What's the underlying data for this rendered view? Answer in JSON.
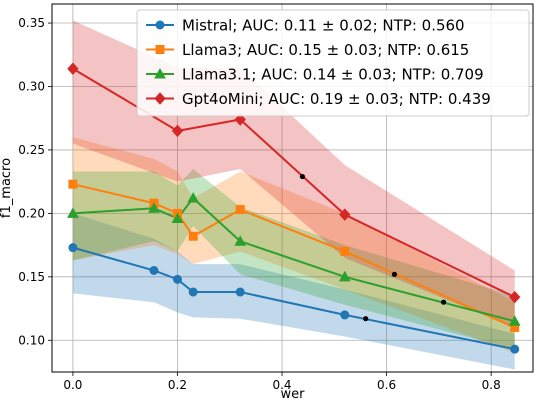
{
  "chart_data": {
    "type": "line",
    "title": "",
    "xlabel": "wer",
    "ylabel": "f1_macro",
    "xlim": [
      -0.04,
      0.88
    ],
    "ylim": [
      0.075,
      0.365
    ],
    "xticks": [
      "0.0",
      "0.2",
      "0.4",
      "0.6",
      "0.8"
    ],
    "yticks": [
      "0.10",
      "0.15",
      "0.20",
      "0.25",
      "0.30",
      "0.35"
    ],
    "grid": true,
    "legend_position": "top-right",
    "series": [
      {
        "name": "Mistral; AUC: 0.11 ± 0.02; NTP: 0.560",
        "color": "#1f77b4",
        "marker": "circle",
        "x": [
          0.0,
          0.155,
          0.2,
          0.23,
          0.32,
          0.52,
          0.845
        ],
        "y": [
          0.173,
          0.155,
          0.148,
          0.138,
          0.138,
          0.12,
          0.093
        ],
        "lower": [
          0.137,
          0.13,
          0.122,
          0.118,
          0.117,
          0.103,
          0.077
        ],
        "upper": [
          0.2,
          0.18,
          0.17,
          0.16,
          0.16,
          0.14,
          0.105
        ],
        "ntp": [
          0.56,
          0.117
        ]
      },
      {
        "name": "Llama3; AUC: 0.15 ± 0.03; NTP: 0.615",
        "color": "#ff7f0e",
        "marker": "square",
        "x": [
          0.0,
          0.155,
          0.2,
          0.23,
          0.32,
          0.52,
          0.845
        ],
        "y": [
          0.223,
          0.208,
          0.2,
          0.182,
          0.203,
          0.17,
          0.11
        ],
        "lower": [
          0.163,
          0.175,
          0.168,
          0.16,
          0.17,
          0.14,
          0.09
        ],
        "upper": [
          0.26,
          0.243,
          0.233,
          0.212,
          0.233,
          0.2,
          0.13
        ],
        "ntp": [
          0.615,
          0.152
        ]
      },
      {
        "name": "Llama3.1; AUC: 0.14 ± 0.03; NTP: 0.709",
        "color": "#2ca02c",
        "marker": "triangle",
        "x": [
          0.0,
          0.155,
          0.2,
          0.23,
          0.32,
          0.52,
          0.845
        ],
        "y": [
          0.2,
          0.204,
          0.196,
          0.212,
          0.178,
          0.15,
          0.115
        ],
        "lower": [
          0.163,
          0.178,
          0.17,
          0.19,
          0.152,
          0.128,
          0.093
        ],
        "upper": [
          0.233,
          0.233,
          0.222,
          0.235,
          0.205,
          0.175,
          0.135
        ],
        "ntp": [
          0.709,
          0.13
        ]
      },
      {
        "name": "Gpt4oMini; AUC: 0.19 ± 0.03; NTP: 0.439",
        "color": "#d62728",
        "marker": "diamond",
        "x": [
          0.0,
          0.2,
          0.32,
          0.52,
          0.845
        ],
        "y": [
          0.314,
          0.265,
          0.274,
          0.199,
          0.134
        ],
        "lower": [
          0.255,
          0.225,
          0.235,
          0.165,
          0.11
        ],
        "upper": [
          0.352,
          0.315,
          0.315,
          0.238,
          0.155
        ],
        "ntp": [
          0.439,
          0.229
        ]
      }
    ]
  }
}
